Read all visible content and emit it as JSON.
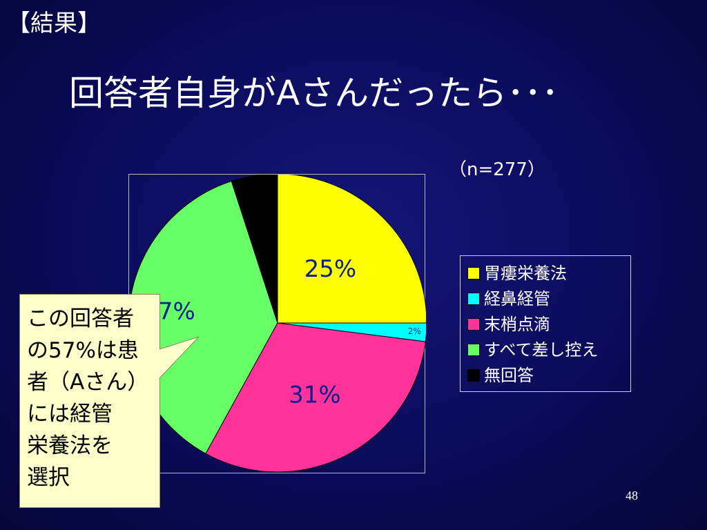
{
  "slide": {
    "section_label": "【結果】",
    "title": "回答者自身がAさんだったら･･･",
    "page_number": "48"
  },
  "chart_data": {
    "type": "pie",
    "title": "",
    "note": "（n=277）",
    "legend_position": "right",
    "slices": [
      {
        "label": "胃瘻栄養法",
        "value": 25,
        "value_label": "25%",
        "color": "#ffff00"
      },
      {
        "label": "経鼻経管",
        "value": 2,
        "value_label": "2%",
        "color": "#00ffff"
      },
      {
        "label": "末梢点滴",
        "value": 31,
        "value_label": "31%",
        "color": "#ff3399"
      },
      {
        "label": "すべて差し控え",
        "value": 37,
        "value_label": "37%",
        "color": "#66ff66"
      },
      {
        "label": "無回答",
        "value": 5,
        "value_label": "",
        "color": "#000000"
      }
    ]
  },
  "callout": {
    "text": "この回答者\nの57%は患\n者（Aさん）\nには経管\n栄養法を\n選択",
    "background": "#ffffcc"
  }
}
